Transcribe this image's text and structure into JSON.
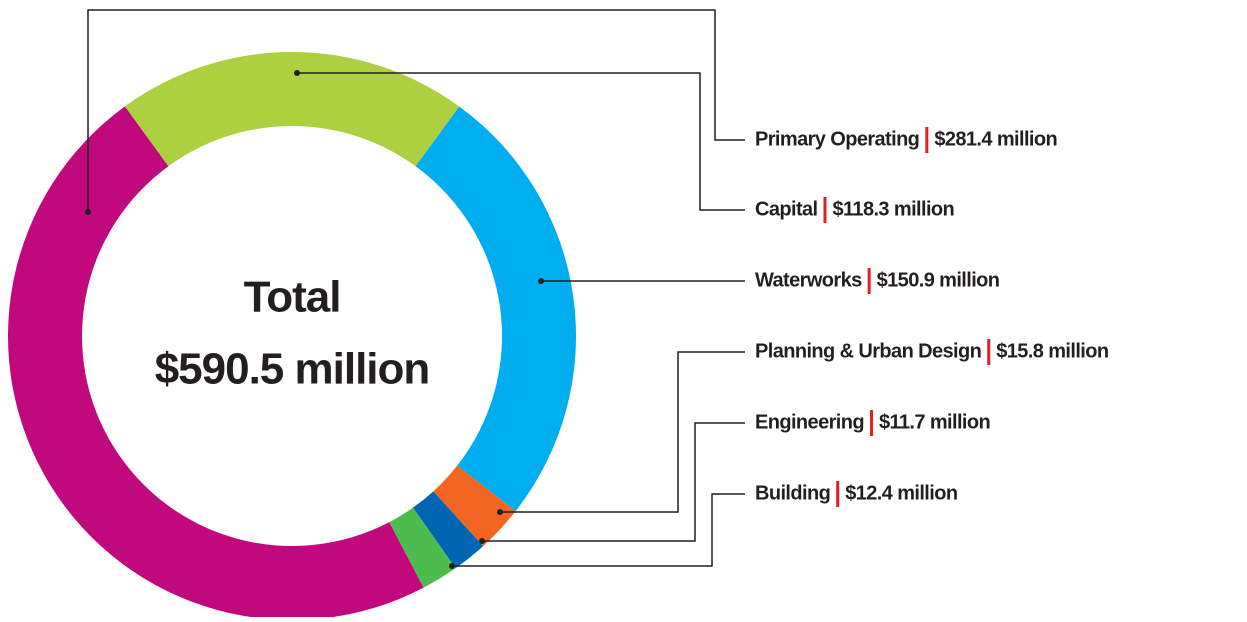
{
  "chart_data": {
    "type": "donut",
    "total_label": "Total",
    "total": "$590.5 million",
    "categories": [
      "Primary Operating",
      "Capital",
      "Waterworks",
      "Planning & Urban Design",
      "Engineering",
      "Building"
    ],
    "values": [
      281.4,
      118.3,
      150.9,
      15.8,
      11.7,
      12.4
    ],
    "value_labels": [
      "$281.4 million",
      "$118.3 million",
      "$150.9 million",
      "$15.8 million",
      "$11.7 million",
      "$12.4 million"
    ],
    "colors": [
      "#c2087d",
      "#acd03f",
      "#00aeef",
      "#f26522",
      "#0066b3",
      "#4cbc4e"
    ]
  }
}
